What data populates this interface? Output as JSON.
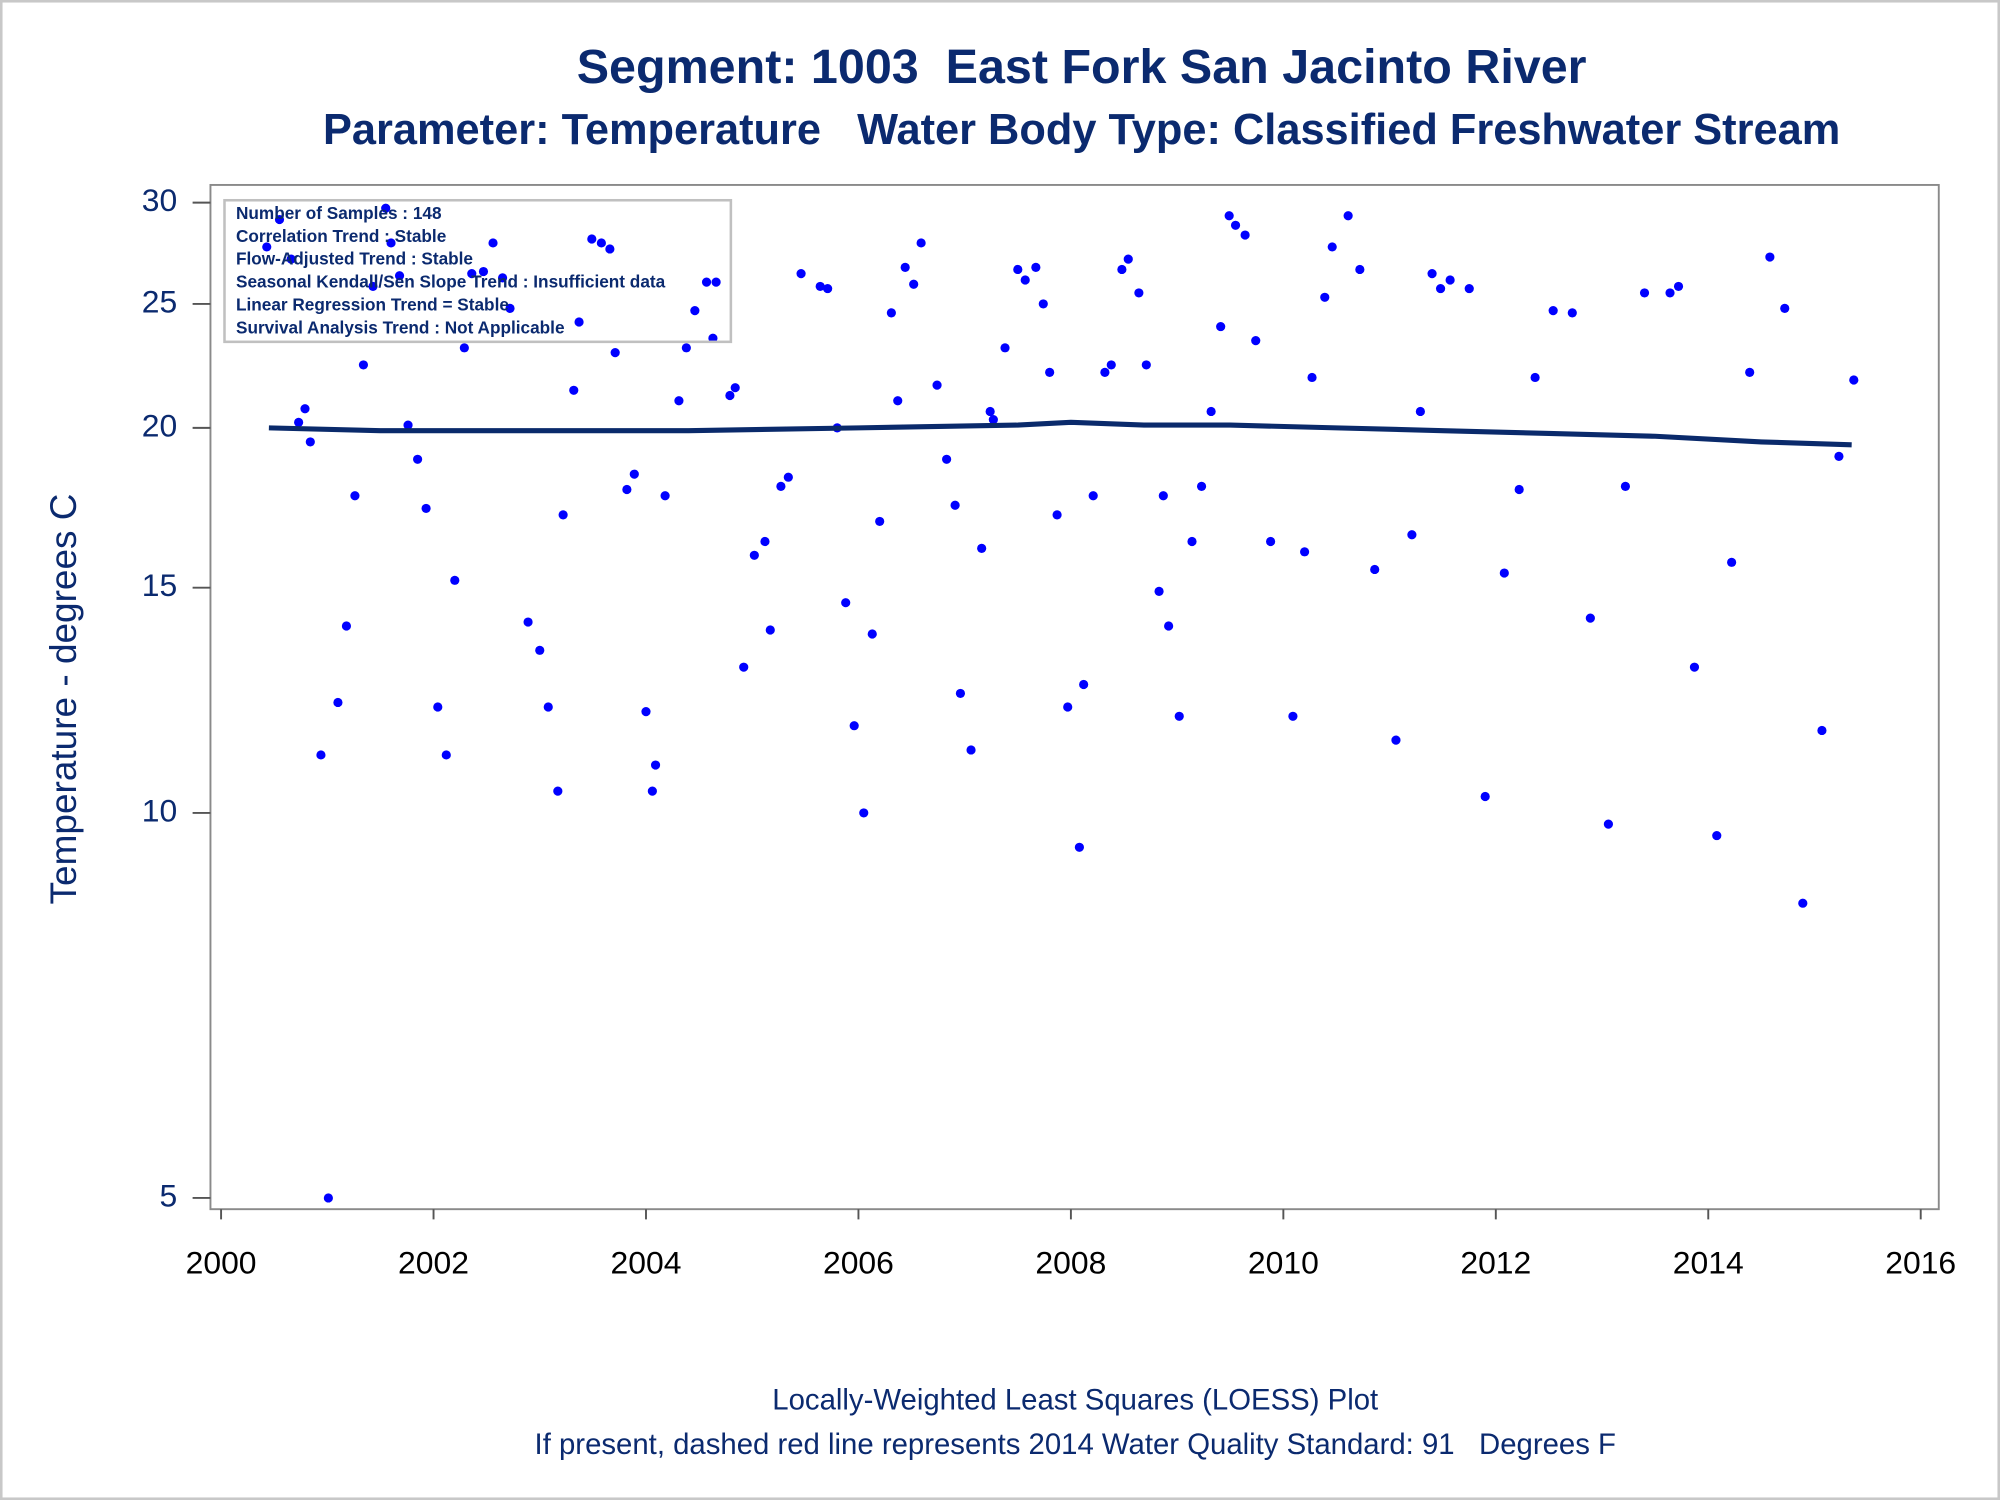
{
  "chart_data": {
    "type": "scatter",
    "title": "Segment: 1003  East Fork San Jacinto River",
    "subtitle": "Parameter: Temperature   Water Body Type: Classified Freshwater Stream",
    "ylabel": "Temperature - degrees C",
    "y_scale": "log",
    "xlim": [
      1999.9,
      2016.17
    ],
    "ylim": [
      4.9,
      30.97
    ],
    "xticks": [
      2000,
      2002,
      2004,
      2006,
      2008,
      2010,
      2012,
      2014,
      2016
    ],
    "yticks": [
      5,
      10,
      15,
      20,
      25,
      30
    ],
    "annotations": [
      "Number of Samples : 148",
      "Correlation Trend : Stable",
      "Flow-Adjusted Trend : Stable",
      "Seasonal Kendall/Sen Slope Trend : Insufficient data",
      "Linear Regression Trend = Stable",
      "Survival Analysis Trend : Not Applicable"
    ],
    "footnotes": [
      "Locally-Weighted Least Squares (LOESS) Plot",
      "If present, dashed red line represents 2014 Water Quality Standard: 91   Degrees F"
    ],
    "series": [
      {
        "mode": "markers",
        "color": "#0000ff",
        "x": [
          2000.43,
          2000.55,
          2000.66,
          2000.73,
          2000.79,
          2000.84,
          2000.94,
          2001.01,
          2001.1,
          2001.18,
          2001.26,
          2001.34,
          2001.43,
          2001.55,
          2001.6,
          2001.68,
          2001.76,
          2001.85,
          2001.93,
          2002.04,
          2002.12,
          2002.2,
          2002.29,
          2002.36,
          2002.47,
          2002.56,
          2002.65,
          2002.72,
          2002.89,
          2003.0,
          2003.08,
          2003.17,
          2003.22,
          2003.32,
          2003.37,
          2003.49,
          2003.58,
          2003.66,
          2003.71,
          2003.82,
          2003.89,
          2004.0,
          2004.06,
          2004.09,
          2004.18,
          2004.31,
          2004.38,
          2004.46,
          2004.57,
          2004.66,
          2004.63,
          2004.79,
          2004.84,
          2004.92,
          2005.02,
          2005.12,
          2005.17,
          2005.27,
          2005.34,
          2005.46,
          2005.64,
          2005.71,
          2005.8,
          2005.88,
          2005.96,
          2006.05,
          2006.13,
          2006.2,
          2006.31,
          2006.37,
          2006.44,
          2006.52,
          2006.59,
          2006.74,
          2006.83,
          2006.91,
          2006.96,
          2007.06,
          2007.16,
          2007.24,
          2007.27,
          2007.38,
          2007.5,
          2007.57,
          2007.67,
          2007.74,
          2007.8,
          2007.87,
          2007.97,
          2008.08,
          2008.12,
          2008.21,
          2008.32,
          2008.38,
          2008.48,
          2008.54,
          2008.64,
          2008.71,
          2008.83,
          2008.87,
          2008.92,
          2009.02,
          2009.14,
          2009.23,
          2009.32,
          2009.41,
          2009.49,
          2009.55,
          2009.64,
          2009.74,
          2009.88,
          2010.09,
          2010.2,
          2010.27,
          2010.39,
          2010.46,
          2010.61,
          2010.72,
          2010.86,
          2011.06,
          2011.21,
          2011.29,
          2011.4,
          2011.48,
          2011.57,
          2011.75,
          2011.9,
          2012.08,
          2012.22,
          2012.37,
          2012.54,
          2012.72,
          2012.89,
          2013.06,
          2013.22,
          2013.4,
          2013.64,
          2013.72,
          2013.87,
          2014.08,
          2014.22,
          2014.39,
          2014.58,
          2014.72,
          2014.89,
          2015.07,
          2015.23,
          2015.37
        ],
        "values": [
          27.7,
          29.1,
          27.1,
          20.2,
          20.7,
          19.5,
          11.1,
          5.0,
          12.2,
          14.0,
          17.7,
          22.4,
          25.8,
          29.7,
          27.9,
          26.3,
          20.1,
          18.9,
          17.3,
          12.1,
          11.1,
          15.2,
          23.1,
          26.4,
          26.5,
          27.9,
          26.2,
          24.8,
          14.1,
          13.4,
          12.1,
          10.4,
          17.1,
          21.4,
          24.2,
          28.1,
          27.9,
          27.6,
          22.9,
          17.9,
          18.4,
          12.0,
          10.4,
          10.9,
          17.7,
          21.0,
          23.1,
          24.7,
          26.0,
          26.0,
          23.5,
          21.2,
          21.5,
          13.0,
          15.9,
          16.3,
          13.9,
          18.0,
          18.3,
          26.4,
          25.8,
          25.7,
          20.0,
          14.6,
          11.7,
          10.0,
          13.8,
          16.9,
          24.6,
          21.0,
          26.7,
          25.9,
          27.9,
          21.6,
          18.9,
          17.4,
          12.4,
          11.2,
          16.1,
          20.6,
          20.3,
          23.1,
          26.6,
          26.1,
          26.7,
          25.0,
          22.1,
          17.1,
          12.1,
          9.4,
          12.6,
          17.7,
          22.1,
          22.4,
          26.6,
          27.1,
          25.5,
          22.4,
          14.9,
          17.7,
          14.0,
          11.9,
          16.3,
          18.0,
          20.6,
          24.0,
          29.3,
          28.8,
          28.3,
          23.4,
          16.3,
          11.9,
          16.0,
          21.9,
          25.3,
          27.7,
          29.3,
          26.6,
          15.5,
          11.4,
          16.5,
          20.6,
          26.4,
          25.7,
          26.1,
          25.7,
          10.3,
          15.4,
          17.9,
          21.9,
          24.7,
          24.6,
          14.2,
          9.8,
          18.0,
          25.5,
          25.5,
          25.8,
          13.0,
          9.6,
          15.7,
          22.1,
          27.2,
          24.8,
          8.5,
          11.6,
          19.0,
          21.8
        ]
      },
      {
        "mode": "line",
        "color": "#0a2a6b",
        "x": [
          2000.45,
          2001.5,
          2004.4,
          2006,
          2007.5,
          2008,
          2008.7,
          2009.5,
          2010.5,
          2011.5,
          2012.5,
          2013.5,
          2014.5,
          2015.35
        ],
        "values": [
          20.0,
          19.9,
          19.9,
          20.0,
          20.1,
          20.2,
          20.1,
          20.1,
          20.0,
          19.9,
          19.8,
          19.7,
          19.5,
          19.4
        ]
      }
    ]
  }
}
